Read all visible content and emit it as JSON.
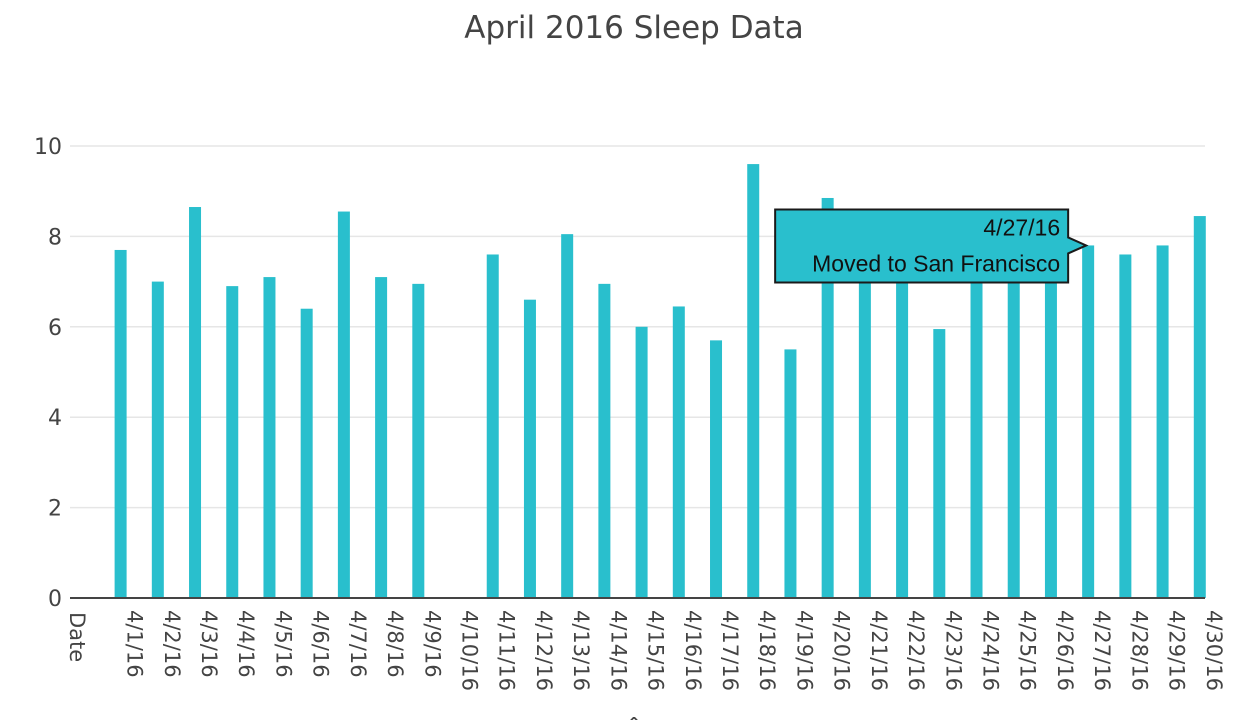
{
  "chart_data": {
    "type": "bar",
    "title": "April 2016 Sleep Data",
    "xlabel": "Date",
    "ylabel": "",
    "ylim": [
      0,
      10.5
    ],
    "yticks": [
      0,
      2,
      4,
      6,
      8,
      10
    ],
    "grid": true,
    "legend": "none",
    "categories": [
      "4/1/16",
      "4/2/16",
      "4/3/16",
      "4/4/16",
      "4/5/16",
      "4/6/16",
      "4/7/16",
      "4/8/16",
      "4/9/16",
      "4/10/16",
      "4/11/16",
      "4/12/16",
      "4/13/16",
      "4/14/16",
      "4/15/16",
      "4/16/16",
      "4/17/16",
      "4/18/16",
      "4/19/16",
      "4/20/16",
      "4/21/16",
      "4/22/16",
      "4/23/16",
      "4/24/16",
      "4/25/16",
      "4/26/16",
      "4/27/16",
      "4/28/16",
      "4/29/16",
      "4/30/16"
    ],
    "values": [
      7.7,
      7.0,
      8.65,
      6.9,
      7.1,
      6.4,
      8.55,
      7.1,
      6.95,
      null,
      7.6,
      6.6,
      8.05,
      6.95,
      6.0,
      6.45,
      5.7,
      9.6,
      5.5,
      8.85,
      7.0,
      7.0,
      5.95,
      7.1,
      7.0,
      7.0,
      7.8,
      7.6,
      7.8,
      8.45
    ],
    "colors": {
      "bar": "#29bfcd",
      "grid": "#e6e6e6",
      "text": "#444444"
    },
    "annotations": [
      {
        "date": "4/27/16",
        "text": "Moved to San Francisco",
        "style": "hover-tooltip"
      }
    ]
  },
  "cursor": {
    "icon": "mouse-cursor-icon",
    "glyph": "^"
  }
}
